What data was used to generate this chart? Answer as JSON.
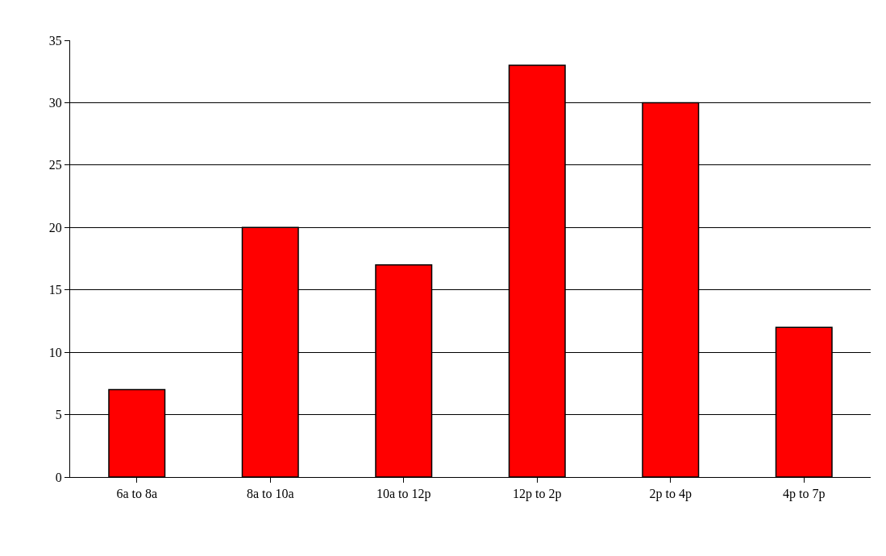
{
  "chart_data": {
    "type": "bar",
    "categories": [
      "6a to 8a",
      "8a to 10a",
      "10a to 12p",
      "12p to 2p",
      "2p to 4p",
      "4p to 7p"
    ],
    "values": [
      7,
      20,
      17,
      33,
      30,
      12
    ],
    "color": "#ff0000",
    "ylim": [
      0,
      35
    ],
    "yticks": [
      0,
      5,
      10,
      15,
      20,
      25,
      30,
      35
    ],
    "grid": "y",
    "legend": false
  }
}
